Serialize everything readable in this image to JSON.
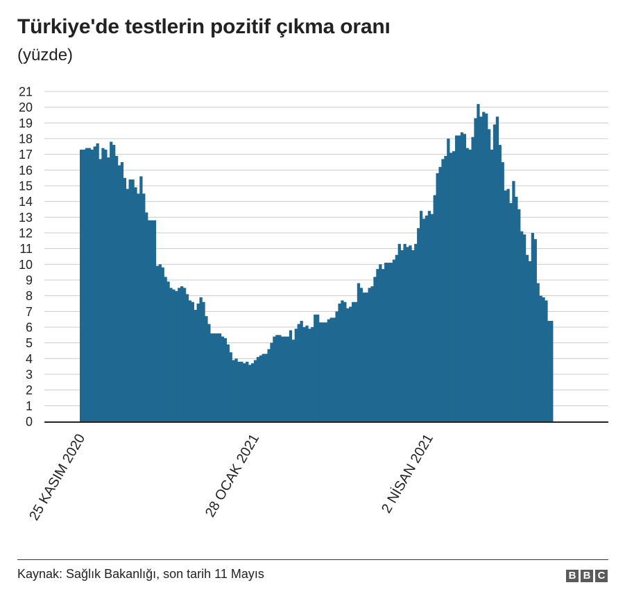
{
  "title": "Türkiye'de testlerin pozitif çıkma oranı",
  "subtitle": "(yüzde)",
  "source": "Kaynak: Sağlık Bakanlığı, son tarih 11 Mayıs",
  "logo": [
    "B",
    "B",
    "C"
  ],
  "colors": {
    "bars": "#1f6891",
    "grid": "#cccccc",
    "axis": "#222222",
    "text": "#222222"
  },
  "chart_data": {
    "type": "bar",
    "title": "Türkiye'de testlerin pozitif çıkma oranı",
    "subtitle": "(yüzde)",
    "xlabel": "",
    "ylabel": "",
    "ylim": [
      0,
      21
    ],
    "yticks": [
      0,
      1,
      2,
      3,
      4,
      5,
      6,
      7,
      8,
      9,
      10,
      11,
      12,
      13,
      14,
      15,
      16,
      17,
      18,
      19,
      20,
      21
    ],
    "xtick_labels": [
      {
        "label": "25 KASIM 2020",
        "index": 0
      },
      {
        "label": "28 OCAK 2021",
        "index": 64
      },
      {
        "label": "2 NİSAN 2021",
        "index": 128
      }
    ],
    "grid": true,
    "legend": "none",
    "series": [
      {
        "values": [
          17.3,
          17.3,
          17.4,
          17.4,
          17.3,
          17.5,
          17.7,
          16.7,
          17.4,
          17.3,
          16.8,
          17.8,
          17.6,
          16.9,
          16.3,
          16.5,
          15.5,
          14.8,
          15.4,
          15.4,
          14.9,
          14.5,
          15.6,
          14.5,
          13.3,
          12.8,
          12.8,
          12.8,
          9.9,
          10.0,
          9.8,
          9.2,
          8.9,
          8.5,
          8.4,
          8.3,
          8.5,
          8.6,
          8.5,
          8.1,
          7.7,
          7.6,
          7.1,
          7.5,
          7.9,
          7.6,
          6.7,
          6.2,
          5.6,
          5.6,
          5.6,
          5.6,
          5.4,
          5.3,
          4.9,
          4.4,
          3.9,
          4.0,
          3.8,
          3.8,
          3.7,
          3.8,
          3.6,
          3.7,
          3.9,
          4.1,
          4.2,
          4.3,
          4.3,
          4.6,
          5.0,
          5.4,
          5.5,
          5.5,
          5.4,
          5.4,
          5.4,
          5.8,
          5.2,
          5.9,
          6.2,
          6.4,
          6.0,
          6.1,
          5.9,
          6.0,
          6.8,
          6.8,
          6.3,
          6.3,
          6.3,
          6.5,
          6.6,
          6.6,
          7.0,
          7.5,
          7.7,
          7.6,
          7.2,
          7.3,
          7.6,
          7.6,
          8.8,
          8.5,
          8.2,
          8.2,
          8.5,
          8.6,
          9.2,
          9.7,
          10.0,
          9.7,
          10.1,
          10.1,
          10.1,
          10.3,
          10.6,
          11.3,
          10.9,
          11.3,
          11.1,
          11.2,
          10.9,
          11.3,
          12.3,
          13.4,
          12.9,
          13.1,
          13.4,
          13.2,
          14.4,
          15.8,
          16.2,
          16.7,
          16.9,
          18.0,
          17.1,
          17.2,
          18.2,
          18.2,
          18.4,
          18.3,
          17.4,
          17.3,
          18.1,
          19.3,
          20.2,
          19.4,
          19.7,
          19.6,
          18.6,
          17.3,
          18.9,
          19.4,
          17.6,
          16.5,
          14.7,
          14.8,
          13.9,
          15.3,
          14.3,
          13.5,
          12.1,
          11.9,
          10.6,
          10.2,
          12.0,
          11.6,
          8.8,
          8.0,
          7.9,
          7.7,
          6.4,
          6.4
        ]
      }
    ]
  }
}
